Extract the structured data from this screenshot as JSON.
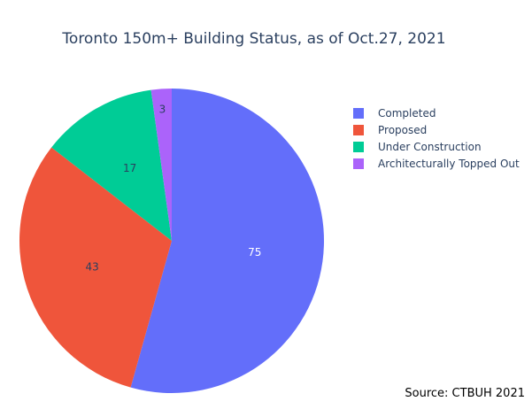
{
  "chart_data": {
    "type": "pie",
    "title": "Toronto 150m+ Building Status, as of Oct.27, 2021",
    "source": "Source: CTBUH 2021",
    "categories": [
      "Completed",
      "Proposed",
      "Under Construction",
      "Architecturally Topped Out"
    ],
    "values": [
      75,
      43,
      17,
      3
    ],
    "colors": [
      "#636efa",
      "#ef553b",
      "#00cc96",
      "#ab63fa"
    ],
    "legend_position": "top-right",
    "sort": "descending",
    "direction": "clockwise",
    "start": "top"
  }
}
